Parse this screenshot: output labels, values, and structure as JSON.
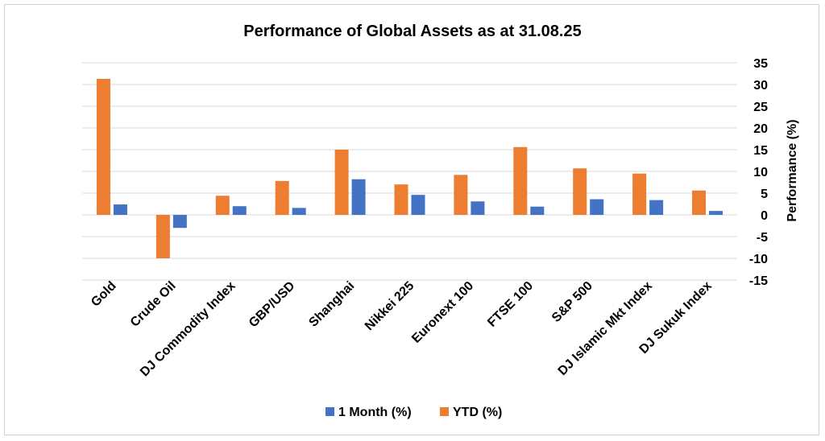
{
  "chart_data": {
    "type": "bar",
    "title": "Performance of Global Assets as at 31.08.25",
    "ylabel": "Performance (%)",
    "xlabel": "",
    "ylim": [
      -15,
      35
    ],
    "yticks": [
      35,
      30,
      25,
      20,
      15,
      10,
      5,
      0,
      -5,
      -10,
      -15
    ],
    "grid": true,
    "legend_position": "bottom",
    "categories": [
      "Gold",
      "Crude Oil",
      "DJ Commodity Index",
      "GBP/USD",
      "Shanghai",
      "Nikkei 225",
      "Euronext 100",
      "FTSE 100",
      "S&P 500",
      "DJ Islamic Mkt Index",
      "DJ Sukuk Index"
    ],
    "series": [
      {
        "name": "YTD (%)",
        "color": "#ED7D31",
        "values": [
          31.3,
          -10.0,
          4.4,
          7.8,
          15.0,
          7.0,
          9.2,
          15.6,
          10.7,
          9.5,
          5.6
        ]
      },
      {
        "name": "1 Month (%)",
        "color": "#4472C4",
        "values": [
          2.4,
          -3.0,
          2.0,
          1.6,
          8.2,
          4.6,
          3.1,
          1.9,
          3.6,
          3.4,
          0.9
        ]
      }
    ],
    "legend_order": [
      "1 Month (%)",
      "YTD (%)"
    ]
  }
}
